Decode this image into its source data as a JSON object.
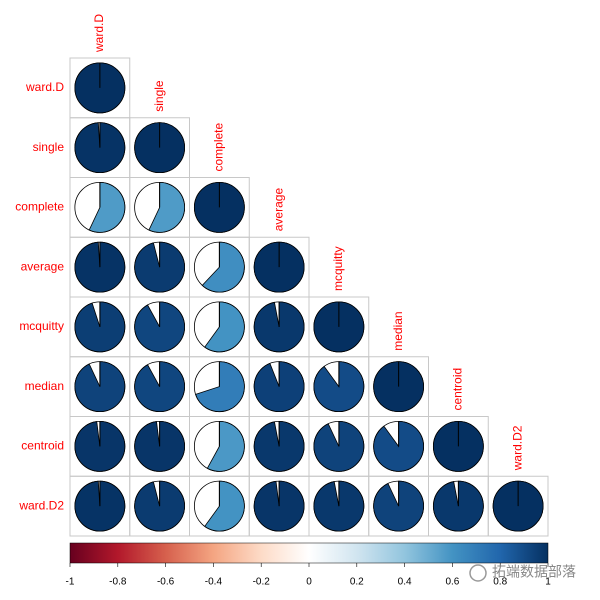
{
  "chart_data": {
    "type": "corrplot",
    "labels": [
      "ward.D",
      "single",
      "complete",
      "average",
      "mcquitty",
      "median",
      "centroid",
      "ward.D2"
    ],
    "matrix": [
      [
        1
      ],
      [
        0.99,
        1
      ],
      [
        0.57,
        0.57,
        1
      ],
      [
        0.99,
        0.96,
        0.62,
        1
      ],
      [
        0.95,
        0.92,
        0.6,
        0.97,
        1
      ],
      [
        0.93,
        0.92,
        0.7,
        0.94,
        0.9,
        1
      ],
      [
        0.98,
        0.98,
        0.58,
        0.97,
        0.93,
        0.9,
        1
      ],
      [
        0.99,
        0.96,
        0.6,
        0.98,
        0.97,
        0.93,
        0.97,
        1
      ]
    ],
    "colors": [
      "#67001F",
      "#B2182B",
      "#D6604D",
      "#F4A582",
      "#FDDBC7",
      "#FFFFFF",
      "#D1E5F0",
      "#92C5DE",
      "#4393C3",
      "#2166AC",
      "#053061"
    ],
    "colorlim": [
      -1,
      1
    ],
    "colorticks": [
      -1,
      -0.8,
      -0.6,
      -0.4,
      -0.2,
      0,
      0.2,
      0.4,
      0.6,
      0.8,
      1
    ],
    "watermark": "拓端数据部落"
  }
}
